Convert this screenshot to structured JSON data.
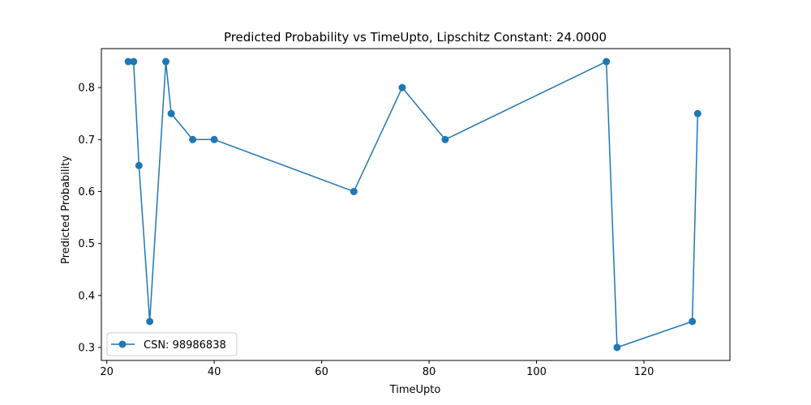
{
  "chart_data": {
    "type": "line",
    "title": "Predicted Probability vs TimeUpto, Lipschitz Constant: 24.0000",
    "xlabel": "TimeUpto",
    "ylabel": "Predicted Probability",
    "xlim": [
      19,
      136
    ],
    "ylim": [
      0.275,
      0.875
    ],
    "xticks": [
      20,
      40,
      60,
      80,
      100,
      120
    ],
    "yticks": [
      0.3,
      0.4,
      0.5,
      0.6,
      0.7,
      0.8
    ],
    "grid": false,
    "legend_position": "lower-left",
    "series": [
      {
        "name": "CSN: 98986838",
        "color": "#1f77b4",
        "marker": "circle",
        "x": [
          24,
          25,
          26,
          28,
          31,
          32,
          36,
          40,
          66,
          75,
          83,
          113,
          115,
          129,
          130
        ],
        "y": [
          0.85,
          0.85,
          0.65,
          0.35,
          0.85,
          0.75,
          0.7,
          0.7,
          0.6,
          0.8,
          0.7,
          0.85,
          0.3,
          0.35,
          0.75
        ]
      }
    ]
  }
}
